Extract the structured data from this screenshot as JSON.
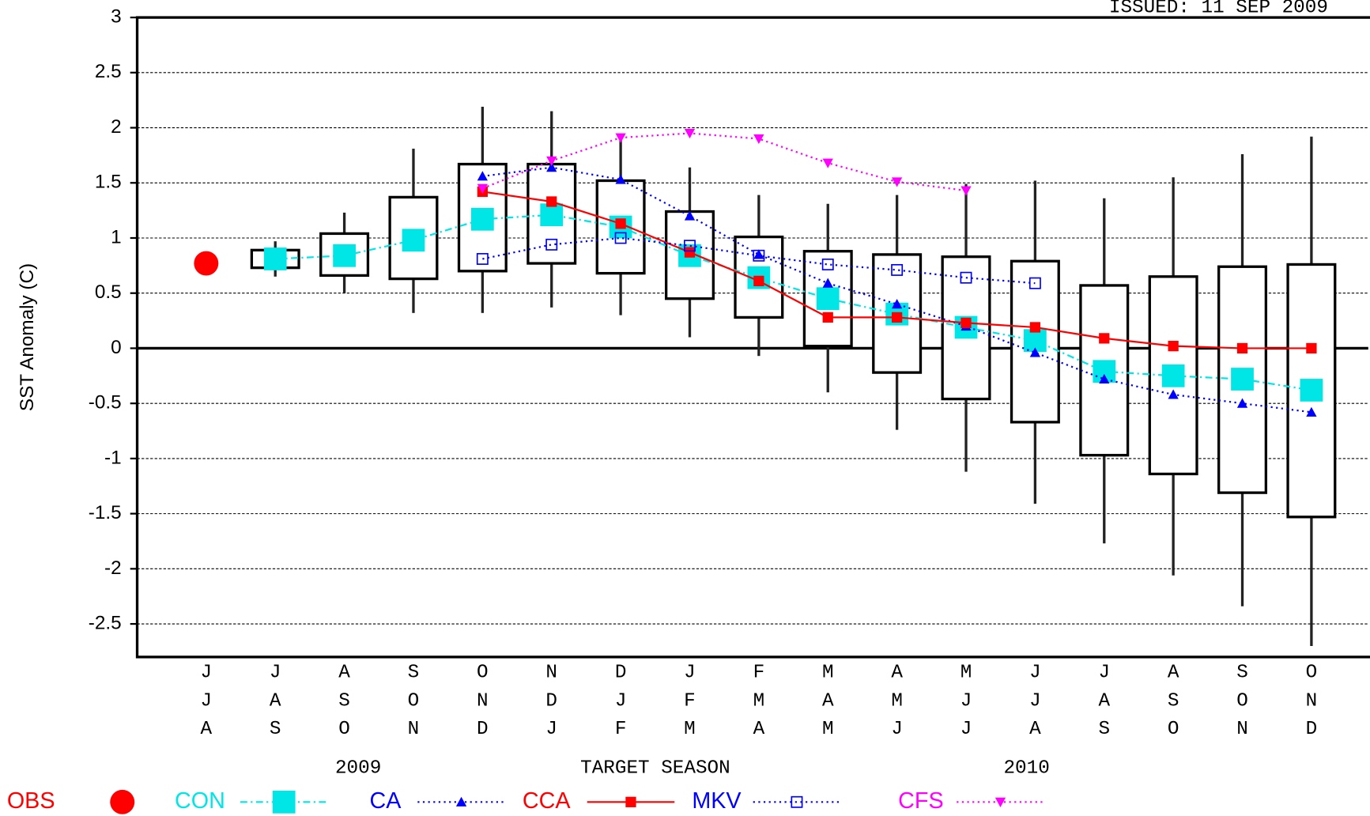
{
  "chart_data": {
    "type": "box",
    "issued": "ISSUED: 11 SEP 2009",
    "ylabel": "SST Anomaly (C)",
    "xlabel": "TARGET SEASON",
    "year_labels": [
      "2009",
      "2010"
    ],
    "categories": [
      "JJA",
      "JAS",
      "ASO",
      "SON",
      "OND",
      "NDJ",
      "DJF",
      "JFM",
      "FMA",
      "MAM",
      "AMJ",
      "MJJ",
      "JJA",
      "JAS",
      "ASO",
      "SON",
      "OND"
    ],
    "ylim": [
      -2.8,
      3
    ],
    "yticks": [
      3,
      2.5,
      2,
      1.5,
      1,
      0.5,
      0,
      -0.5,
      -1,
      -1.5,
      -2,
      -2.5
    ],
    "grid": true,
    "boxes": {
      "whisker_high": [
        null,
        0.97,
        1.23,
        1.81,
        2.19,
        2.15,
        1.93,
        1.64,
        1.39,
        1.31,
        1.39,
        1.49,
        1.52,
        1.36,
        1.55,
        1.76,
        1.92
      ],
      "box_high": [
        null,
        0.89,
        1.04,
        1.37,
        1.67,
        1.67,
        1.52,
        1.24,
        1.01,
        0.88,
        0.85,
        0.83,
        0.79,
        0.57,
        0.65,
        0.74,
        0.76
      ],
      "box_low": [
        null,
        0.73,
        0.66,
        0.63,
        0.7,
        0.77,
        0.68,
        0.45,
        0.28,
        0.02,
        -0.22,
        -0.46,
        -0.67,
        -0.97,
        -1.14,
        -1.31,
        -1.53
      ],
      "whisker_low": [
        null,
        0.65,
        0.5,
        0.32,
        0.32,
        0.37,
        0.3,
        0.1,
        -0.07,
        -0.4,
        -0.74,
        -1.12,
        -1.41,
        -1.77,
        -2.06,
        -2.34,
        -2.7
      ]
    },
    "series": [
      {
        "name": "OBS",
        "color": "#ff0000",
        "marker": "dot",
        "line": "none",
        "values": [
          0.77,
          null,
          null,
          null,
          null,
          null,
          null,
          null,
          null,
          null,
          null,
          null,
          null,
          null,
          null,
          null,
          null
        ]
      },
      {
        "name": "CON",
        "color": "#00e5e5",
        "marker": "bigsquare",
        "line": "dashdot",
        "values": [
          null,
          0.81,
          0.84,
          0.98,
          1.17,
          1.21,
          1.1,
          0.84,
          0.64,
          0.45,
          0.31,
          0.19,
          0.07,
          -0.21,
          -0.25,
          -0.28,
          -0.38
        ]
      },
      {
        "name": "CA",
        "color": "#0000ff",
        "marker": "triangle",
        "line": "dotted",
        "values": [
          null,
          null,
          null,
          null,
          1.56,
          1.64,
          1.53,
          1.2,
          0.85,
          0.59,
          0.4,
          0.2,
          -0.04,
          -0.28,
          -0.42,
          -0.5,
          -0.58
        ]
      },
      {
        "name": "CCA",
        "color": "#ff0000",
        "marker": "square",
        "line": "solid",
        "values": [
          null,
          null,
          null,
          null,
          1.42,
          1.33,
          1.13,
          0.87,
          0.61,
          0.28,
          0.28,
          0.23,
          0.19,
          0.09,
          0.02,
          0,
          0
        ]
      },
      {
        "name": "MKV",
        "color": "#0000ff",
        "marker": "hollowsquare",
        "line": "dotted",
        "values": [
          null,
          null,
          null,
          null,
          0.81,
          0.94,
          1.0,
          0.93,
          0.84,
          0.76,
          0.71,
          0.64,
          0.59,
          null,
          null,
          null,
          null
        ]
      },
      {
        "name": "CFS",
        "color": "#ff00ff",
        "marker": "invtriangle",
        "line": "dotted",
        "values": [
          null,
          null,
          null,
          null,
          1.45,
          1.7,
          1.91,
          1.95,
          1.9,
          1.68,
          1.51,
          1.43,
          null,
          null,
          null,
          null,
          null
        ]
      }
    ]
  }
}
